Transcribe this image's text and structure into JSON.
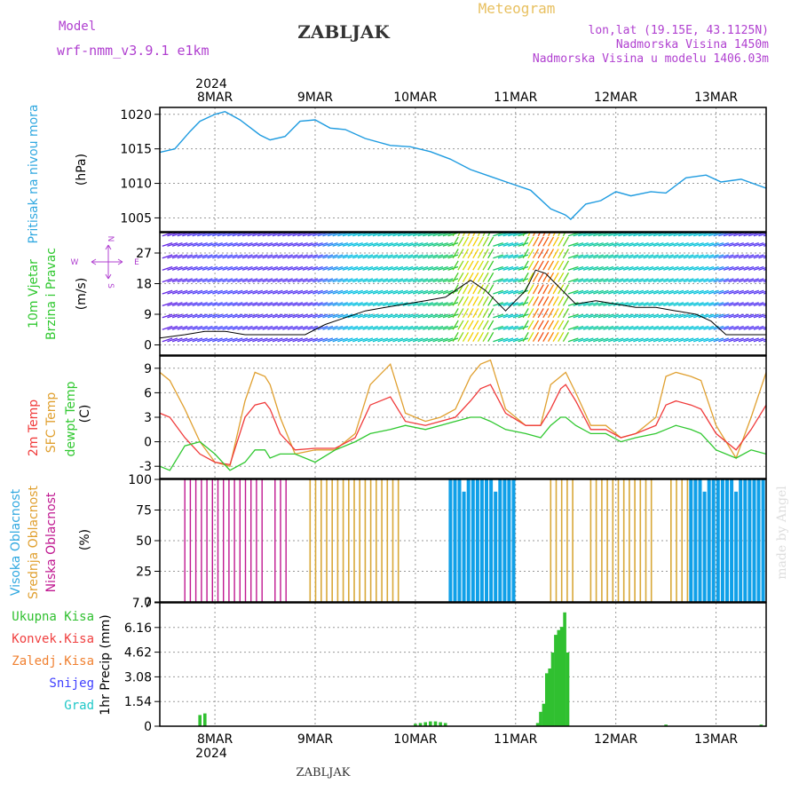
{
  "header": {
    "model_label": "Model",
    "model_name": "wrf-nmm_v3.9.1  e1km",
    "location_title": "ZABLJAK",
    "meteogram_label": "Meteogram",
    "lonlat": "lon,lat (19.15E, 43.1125N)",
    "elevation": "Nadmorska Visina 1450m",
    "model_elevation": "Nadmorska Visina u modelu 1406.03m"
  },
  "footer": {
    "location": "ZABLJAK",
    "credit": "made by Angel"
  },
  "time_axis": {
    "year_top": "2024",
    "year_bottom": "2024",
    "day_labels": [
      "8MAR",
      "9MAR",
      "10MAR",
      "11MAR",
      "12MAR",
      "13MAR"
    ],
    "day_values": [
      8,
      9,
      10,
      11,
      12,
      13
    ],
    "range": [
      7.45,
      13.5
    ]
  },
  "panels": {
    "pressure": {
      "title": "Pritisak na nivou mora",
      "unit": "(hPa)",
      "ticks": [
        "1005",
        "1010",
        "1015",
        "1020"
      ]
    },
    "wind": {
      "title_line1": "10m Vjetar",
      "title_line2": "Brzina i Pravac",
      "unit": "(m/s)",
      "ticks": [
        "0",
        "9",
        "18",
        "27"
      ],
      "compass": {
        "w": "W",
        "n": "N",
        "e": "E",
        "s": "S"
      }
    },
    "temp": {
      "title_line1": "2m Temp",
      "title_line2": "SFC Temp",
      "title_line3": "dewpt Temp",
      "unit": "(C)",
      "ticks": [
        "-3",
        "0",
        "3",
        "6",
        "9"
      ]
    },
    "cloud": {
      "title_line1": "Visoka Oblacnost",
      "title_line2": "Srednja Oblacnost",
      "title_line3": "Niska Oblacnost",
      "unit": "(%)",
      "ticks": [
        "0",
        "25",
        "50",
        "75",
        "100"
      ]
    },
    "precip": {
      "legend": [
        "Ukupna Kisa",
        "Konvek.Kisa",
        "Zaledj.Kisa",
        "Snijeg",
        "Grad"
      ],
      "unit": "1hr Precip (mm)",
      "ticks": [
        "0",
        "1.54",
        "3.08",
        "4.62",
        "6.16",
        "7.7"
      ]
    }
  },
  "colors": {
    "pressure": "#1e9be0",
    "t2m": "#f03a3a",
    "sfc": "#e0a030",
    "dewpt": "#30c830",
    "cloud_high": "#10a0e8",
    "cloud_mid": "#d8a838",
    "cloud_low": "#c01890",
    "rain": "#30c030",
    "conv": "#f04040",
    "frz": "#f08030",
    "snow": "#4040ff",
    "hail": "#20c8c8",
    "title_purple": "#b040d0",
    "title_gold": "#e8c060"
  },
  "chart_data": [
    {
      "type": "line",
      "title": "Pritisak na nivou mora",
      "ylabel": "(hPa)",
      "ylim": [
        1003,
        1021
      ],
      "x": [
        7.45,
        7.6,
        7.75,
        7.85,
        8.0,
        8.1,
        8.25,
        8.45,
        8.55,
        8.7,
        8.85,
        9.0,
        9.15,
        9.3,
        9.5,
        9.75,
        9.95,
        10.15,
        10.35,
        10.55,
        10.75,
        10.95,
        11.15,
        11.35,
        11.5,
        11.55,
        11.7,
        11.85,
        12.0,
        12.15,
        12.35,
        12.5,
        12.7,
        12.9,
        13.05,
        13.25,
        13.5
      ],
      "series": [
        {
          "values": [
            1014.5,
            1015.0,
            1017.5,
            1019.0,
            1020.0,
            1020.4,
            1019.2,
            1017.0,
            1016.3,
            1016.8,
            1019.0,
            1019.2,
            1018.0,
            1017.8,
            1016.5,
            1015.5,
            1015.3,
            1014.6,
            1013.5,
            1012.0,
            1011.0,
            1010.0,
            1009.0,
            1006.3,
            1005.4,
            1004.8,
            1007.0,
            1007.5,
            1008.8,
            1008.2,
            1008.8,
            1008.6,
            1010.8,
            1011.2,
            1010.2,
            1010.6,
            1009.3
          ]
        }
      ]
    },
    {
      "type": "line",
      "title": "10m Vjetar Brzina i Pravac",
      "ylabel": "(m/s)",
      "ylim": [
        -3,
        33
      ],
      "x": [
        7.45,
        7.7,
        7.9,
        8.1,
        8.3,
        8.5,
        8.7,
        8.9,
        9.1,
        9.3,
        9.5,
        9.7,
        9.9,
        10.1,
        10.3,
        10.45,
        10.55,
        10.7,
        10.9,
        11.1,
        11.2,
        11.3,
        11.4,
        11.5,
        11.6,
        11.8,
        12.0,
        12.2,
        12.4,
        12.6,
        12.8,
        12.95,
        13.1,
        13.3,
        13.5
      ],
      "series": [
        {
          "name": "brzina",
          "values": [
            2,
            3,
            4,
            4,
            3,
            3,
            3,
            3,
            6,
            8,
            10,
            11,
            12,
            13,
            14,
            17,
            19,
            16,
            10,
            16,
            22,
            21,
            18,
            15,
            12,
            13,
            12,
            11,
            11,
            10,
            9,
            7,
            3,
            3,
            3
          ]
        }
      ]
    },
    {
      "type": "line",
      "title": "2m Temp / SFC Temp / dewpt Temp",
      "ylabel": "(C)",
      "ylim": [
        -4.5,
        10.5
      ],
      "x": [
        7.45,
        7.55,
        7.7,
        7.85,
        8.0,
        8.15,
        8.3,
        8.4,
        8.5,
        8.55,
        8.65,
        8.8,
        9.0,
        9.2,
        9.4,
        9.55,
        9.75,
        9.9,
        10.1,
        10.25,
        10.4,
        10.55,
        10.65,
        10.75,
        10.9,
        11.1,
        11.25,
        11.35,
        11.45,
        11.5,
        11.6,
        11.75,
        11.9,
        12.05,
        12.2,
        12.4,
        12.5,
        12.6,
        12.75,
        12.85,
        13.0,
        13.2,
        13.35,
        13.5
      ],
      "series": [
        {
          "name": "2m Temp",
          "values": [
            3.5,
            3.0,
            0.5,
            -1.5,
            -2.5,
            -2.8,
            3.0,
            4.5,
            4.8,
            4.0,
            1.0,
            -1.0,
            -0.8,
            -0.8,
            0.5,
            4.5,
            5.5,
            2.5,
            2.0,
            2.5,
            3.0,
            5.0,
            6.5,
            7.0,
            3.5,
            2.0,
            2.0,
            4.0,
            6.5,
            7.0,
            5.0,
            1.5,
            1.5,
            0.5,
            1.0,
            2.0,
            4.5,
            5.0,
            4.5,
            4.0,
            1.0,
            -1.0,
            1.5,
            4.5
          ]
        },
        {
          "name": "SFC Temp",
          "values": [
            8.5,
            7.5,
            4.0,
            0.0,
            -2.5,
            -3.0,
            5.0,
            8.5,
            8.0,
            7.0,
            3.0,
            -1.5,
            -1.0,
            -1.0,
            1.0,
            7.0,
            9.5,
            3.5,
            2.5,
            3.0,
            4.0,
            8.0,
            9.5,
            10.0,
            4.0,
            2.0,
            2.0,
            7.0,
            8.0,
            8.5,
            6.0,
            2.0,
            2.0,
            0.5,
            1.0,
            3.0,
            8.0,
            8.5,
            8.0,
            7.5,
            2.0,
            -2.0,
            3.0,
            8.5
          ]
        },
        {
          "name": "dewpt Temp",
          "values": [
            -3.0,
            -3.5,
            -0.5,
            0.0,
            -1.5,
            -3.5,
            -2.5,
            -1.0,
            -1.0,
            -2.0,
            -1.5,
            -1.5,
            -2.5,
            -1.0,
            0.0,
            1.0,
            1.5,
            2.0,
            1.5,
            2.0,
            2.5,
            3.0,
            3.0,
            2.5,
            1.5,
            1.0,
            0.5,
            2.0,
            3.0,
            3.0,
            2.0,
            1.0,
            1.0,
            0.0,
            0.5,
            1.0,
            1.5,
            2.0,
            1.5,
            1.0,
            -1.0,
            -2.0,
            -1.0,
            -1.5
          ]
        }
      ]
    },
    {
      "type": "bar",
      "title": "Visoka / Srednja / Niska Oblacnost",
      "ylabel": "(%)",
      "ylim": [
        0,
        100
      ],
      "series": [
        {
          "name": "Visoka Oblacnost",
          "ranges": [
            [
              10.35,
              11.0,
              100
            ],
            [
              12.75,
              13.5,
              100
            ]
          ]
        },
        {
          "name": "Srednja Oblacnost",
          "ranges": [
            [
              8.95,
              9.85,
              100
            ],
            [
              11.35,
              11.6,
              100
            ],
            [
              11.75,
              12.4,
              100
            ],
            [
              12.55,
              12.75,
              100
            ]
          ]
        },
        {
          "name": "Niska Oblacnost",
          "ranges": [
            [
              7.7,
              8.5,
              100
            ],
            [
              8.6,
              8.75,
              100
            ]
          ]
        }
      ]
    },
    {
      "type": "bar",
      "title": "1hr Precip",
      "ylabel": "1hr Precip (mm)",
      "ylim": [
        0,
        7.7
      ],
      "x": [
        7.85,
        7.9,
        10.0,
        10.05,
        10.1,
        10.15,
        10.2,
        10.25,
        10.3,
        11.22,
        11.25,
        11.28,
        11.31,
        11.34,
        11.37,
        11.4,
        11.43,
        11.46,
        11.49,
        11.52,
        12.5,
        13.45
      ],
      "series": [
        {
          "name": "Ukupna Kisa",
          "values": [
            0.7,
            0.8,
            0.15,
            0.2,
            0.25,
            0.3,
            0.3,
            0.25,
            0.2,
            0.2,
            0.9,
            1.4,
            3.3,
            3.6,
            4.6,
            5.7,
            6.0,
            6.2,
            7.1,
            4.6,
            0.1,
            0.1
          ]
        }
      ]
    }
  ]
}
